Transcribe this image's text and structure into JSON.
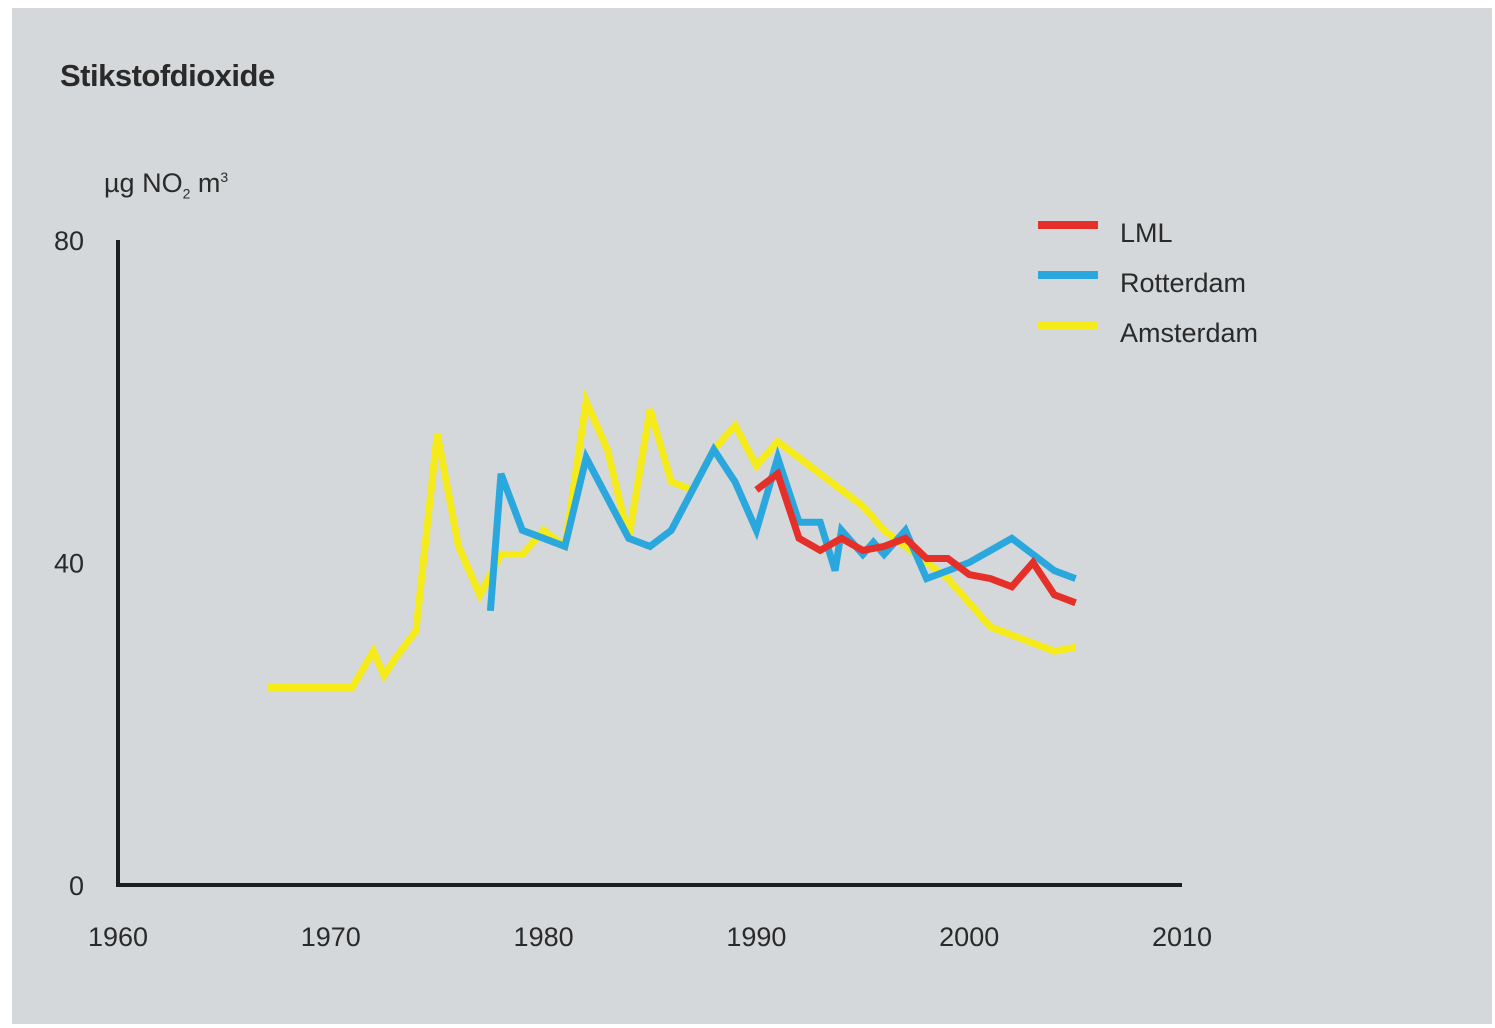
{
  "chart_data": {
    "type": "line",
    "title": "Stikstofdioxide",
    "ylabel": {
      "prefix": "µg NO",
      "sub": "2",
      "mid": " m",
      "sup": "3"
    },
    "xlim": [
      1960,
      2010
    ],
    "ylim": [
      0,
      80
    ],
    "xticks": [
      1960,
      1970,
      1980,
      1990,
      2000,
      2010
    ],
    "yticks": [
      0,
      40,
      80
    ],
    "grid": false,
    "legend": "top-right",
    "series": [
      {
        "name": "Amsterdam",
        "color": "#f5ea1a",
        "x": [
          1967,
          1968,
          1969,
          1970,
          1971,
          1972,
          1972.5,
          1973,
          1974,
          1975,
          1976,
          1977,
          1978,
          1979,
          1980,
          1981,
          1982,
          1983,
          1984,
          1985,
          1986,
          1987,
          1988,
          1989,
          1990,
          1991,
          1992,
          1993,
          1994,
          1995,
          1996,
          1997,
          1998,
          1999,
          2000,
          2001,
          2002,
          2003,
          2004,
          2005
        ],
        "y": [
          24.5,
          24.5,
          24.5,
          24.5,
          24.5,
          29,
          26,
          28,
          31.5,
          56,
          42,
          36,
          41,
          41,
          44,
          42,
          60,
          54,
          43,
          59,
          50,
          49,
          54,
          57,
          52,
          55,
          53,
          51,
          49,
          47,
          44,
          42,
          40,
          38,
          35,
          32,
          31,
          30,
          29,
          29.5
        ]
      },
      {
        "name": "Rotterdam",
        "color": "#2aa8de",
        "x": [
          1977.5,
          1978,
          1979,
          1980,
          1981,
          1982,
          1983,
          1984,
          1985,
          1986,
          1987,
          1988,
          1989,
          1990,
          1991,
          1992,
          1993,
          1993.7,
          1994,
          1995,
          1995.5,
          1996,
          1997,
          1998,
          1999,
          2000,
          2001,
          2002,
          2003,
          2004,
          2005
        ],
        "y": [
          34,
          51,
          44,
          43,
          42,
          53,
          48,
          43,
          42,
          44,
          49,
          54,
          50,
          44,
          53,
          45,
          45,
          39,
          44,
          41,
          42.5,
          41,
          44,
          38,
          39,
          40,
          41.5,
          43,
          41,
          39,
          38
        ]
      },
      {
        "name": "LML",
        "color": "#e5302a",
        "x": [
          1990,
          1991,
          1992,
          1993,
          1994,
          1995,
          1996,
          1997,
          1998,
          1999,
          2000,
          2001,
          2002,
          2003,
          2004,
          2005
        ],
        "y": [
          49,
          51,
          43,
          41.5,
          43,
          41.5,
          42,
          43,
          40.5,
          40.5,
          38.5,
          38,
          37,
          40,
          36,
          35
        ]
      }
    ],
    "legend_order": [
      "LML",
      "Rotterdam",
      "Amsterdam"
    ]
  }
}
